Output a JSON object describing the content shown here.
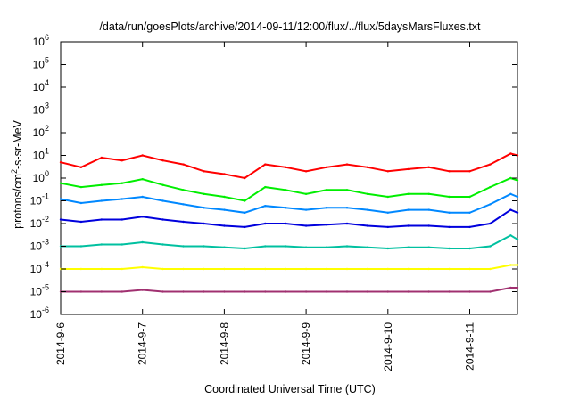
{
  "chart_data": {
    "type": "line",
    "title": "/data/run/goesPlots/archive/2014-09-11/12:00/flux/../flux/5daysMarsFluxes.txt",
    "xlabel": "Coordinated Universal Time (UTC)",
    "ylabel": {
      "prefix": "protons/cm",
      "sup": "2",
      "suffix": "-s-sr-MeV"
    },
    "yscale": "log",
    "ylim": [
      1e-06,
      1000000.0
    ],
    "yticks": [
      {
        "exp": -6
      },
      {
        "exp": -5
      },
      {
        "exp": -4
      },
      {
        "exp": -3
      },
      {
        "exp": -2
      },
      {
        "exp": -1
      },
      {
        "exp": 0
      },
      {
        "exp": 1
      },
      {
        "exp": 2
      },
      {
        "exp": 3
      },
      {
        "exp": 4
      },
      {
        "exp": 5
      },
      {
        "exp": 6
      }
    ],
    "xlim": [
      "2014-09-06 00:00",
      "2014-09-11 14:00"
    ],
    "xticks": [
      "2014-9-6",
      "2014-9-7",
      "2014-9-8",
      "2014-9-9",
      "2014-9-10",
      "2014-9-11"
    ],
    "grid": false,
    "legend": "none",
    "x": [
      "2014-09-06 00:00",
      "2014-09-06 06:00",
      "2014-09-06 12:00",
      "2014-09-06 18:00",
      "2014-09-07 00:00",
      "2014-09-07 06:00",
      "2014-09-07 12:00",
      "2014-09-07 18:00",
      "2014-09-08 00:00",
      "2014-09-08 06:00",
      "2014-09-08 12:00",
      "2014-09-08 18:00",
      "2014-09-09 00:00",
      "2014-09-09 06:00",
      "2014-09-09 12:00",
      "2014-09-09 18:00",
      "2014-09-10 00:00",
      "2014-09-10 06:00",
      "2014-09-10 12:00",
      "2014-09-10 18:00",
      "2014-09-11 00:00",
      "2014-09-11 06:00",
      "2014-09-11 12:00",
      "2014-09-11 14:00"
    ],
    "series": [
      {
        "color": "#ff0000",
        "values": [
          5,
          3,
          8,
          6,
          10,
          6,
          4,
          2,
          1.5,
          1,
          4,
          3,
          2,
          3,
          4,
          3,
          2,
          2.5,
          3,
          2,
          2,
          4,
          12,
          10
        ]
      },
      {
        "color": "#00ee00",
        "values": [
          0.6,
          0.4,
          0.5,
          0.6,
          0.9,
          0.5,
          0.3,
          0.2,
          0.15,
          0.1,
          0.4,
          0.3,
          0.2,
          0.3,
          0.3,
          0.2,
          0.15,
          0.2,
          0.2,
          0.15,
          0.15,
          0.4,
          1,
          0.8
        ]
      },
      {
        "color": "#0088ff",
        "values": [
          0.12,
          0.08,
          0.1,
          0.12,
          0.15,
          0.1,
          0.07,
          0.05,
          0.04,
          0.03,
          0.06,
          0.05,
          0.04,
          0.05,
          0.05,
          0.04,
          0.03,
          0.04,
          0.04,
          0.03,
          0.03,
          0.07,
          0.2,
          0.15
        ]
      },
      {
        "color": "#0000dd",
        "values": [
          0.015,
          0.012,
          0.015,
          0.015,
          0.02,
          0.015,
          0.012,
          0.01,
          0.008,
          0.007,
          0.01,
          0.01,
          0.008,
          0.009,
          0.01,
          0.008,
          0.007,
          0.008,
          0.008,
          0.007,
          0.007,
          0.01,
          0.04,
          0.03
        ]
      },
      {
        "color": "#00c0a0",
        "values": [
          0.001,
          0.001,
          0.0012,
          0.0012,
          0.0015,
          0.0012,
          0.001,
          0.001,
          0.0009,
          0.0008,
          0.001,
          0.001,
          0.0009,
          0.0009,
          0.001,
          0.0009,
          0.0008,
          0.0009,
          0.0009,
          0.0008,
          0.0008,
          0.001,
          0.003,
          0.002
        ]
      },
      {
        "color": "#ffff00",
        "values": [
          0.0001,
          0.0001,
          0.0001,
          0.0001,
          0.00012,
          0.0001,
          0.0001,
          0.0001,
          0.0001,
          0.0001,
          0.0001,
          0.0001,
          0.0001,
          0.0001,
          0.0001,
          0.0001,
          0.0001,
          0.0001,
          0.0001,
          0.0001,
          0.0001,
          0.0001,
          0.00015,
          0.00015
        ]
      },
      {
        "color": "#a03070",
        "values": [
          1e-05,
          1e-05,
          1e-05,
          1e-05,
          1.2e-05,
          1e-05,
          1e-05,
          1e-05,
          1e-05,
          1e-05,
          1e-05,
          1e-05,
          1e-05,
          1e-05,
          1e-05,
          1e-05,
          1e-05,
          1e-05,
          1e-05,
          1e-05,
          1e-05,
          1e-05,
          1.5e-05,
          1.5e-05
        ]
      }
    ]
  }
}
